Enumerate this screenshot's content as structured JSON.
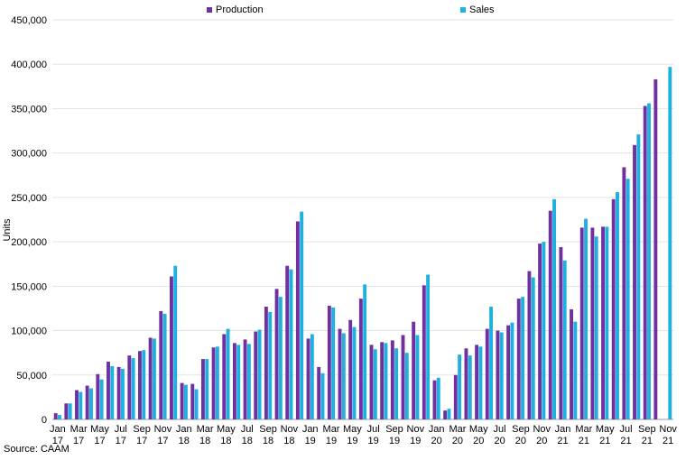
{
  "chart_data": {
    "type": "bar",
    "ylabel": "Units",
    "source": "Source: CAAM",
    "ylim": [
      0,
      450000
    ],
    "yticks": [
      "0",
      "50,000",
      "100,000",
      "150,000",
      "200,000",
      "250,000",
      "300,000",
      "350,000",
      "400,000",
      "450,000"
    ],
    "grid": true,
    "legend_position": "top",
    "colors": {
      "Production": "#7030a0",
      "Sales": "#1fb0e0"
    },
    "categories": [
      "Jan 17",
      "Feb 17",
      "Mar 17",
      "Apr 17",
      "May 17",
      "Jun 17",
      "Jul 17",
      "Aug 17",
      "Sep 17",
      "Oct 17",
      "Nov 17",
      "Dec 17",
      "Jan 18",
      "Feb 18",
      "Mar 18",
      "Apr 18",
      "May 18",
      "Jun 18",
      "Jul 18",
      "Aug 18",
      "Sep 18",
      "Oct 18",
      "Nov 18",
      "Dec 18",
      "Jan 19",
      "Feb 19",
      "Mar 19",
      "Apr 19",
      "May 19",
      "Jun 19",
      "Jul 19",
      "Aug 19",
      "Sep 19",
      "Oct 19",
      "Nov 19",
      "Dec 19",
      "Jan 20",
      "Feb 20",
      "Mar 20",
      "Apr 20",
      "May 20",
      "Jun 20",
      "Jul 20",
      "Aug 20",
      "Sep 20",
      "Oct 20",
      "Nov 20",
      "Dec 20",
      "Jan 21",
      "Feb 21",
      "Mar 21",
      "Apr 21",
      "May 21",
      "Jun 21",
      "Jul 21",
      "Aug 21",
      "Sep 21",
      "Oct 21",
      "Nov 21"
    ],
    "tick_labels": [
      {
        "month": "Jan",
        "year": "17"
      },
      {
        "month": "Mar",
        "year": "17"
      },
      {
        "month": "May",
        "year": "17"
      },
      {
        "month": "Jul",
        "year": "17"
      },
      {
        "month": "Sep",
        "year": "17"
      },
      {
        "month": "Nov",
        "year": "17"
      },
      {
        "month": "Jan",
        "year": "18"
      },
      {
        "month": "Mar",
        "year": "18"
      },
      {
        "month": "May",
        "year": "18"
      },
      {
        "month": "Jul",
        "year": "18"
      },
      {
        "month": "Sep",
        "year": "18"
      },
      {
        "month": "Nov",
        "year": "18"
      },
      {
        "month": "Jan",
        "year": "19"
      },
      {
        "month": "Mar",
        "year": "19"
      },
      {
        "month": "May",
        "year": "19"
      },
      {
        "month": "Jul",
        "year": "19"
      },
      {
        "month": "Sep",
        "year": "19"
      },
      {
        "month": "Nov",
        "year": "19"
      },
      {
        "month": "Jan",
        "year": "20"
      },
      {
        "month": "Mar",
        "year": "20"
      },
      {
        "month": "May",
        "year": "20"
      },
      {
        "month": "Jul",
        "year": "20"
      },
      {
        "month": "Sep",
        "year": "20"
      },
      {
        "month": "Nov",
        "year": "20"
      },
      {
        "month": "Jan",
        "year": "21"
      },
      {
        "month": "Mar",
        "year": "21"
      },
      {
        "month": "May",
        "year": "21"
      },
      {
        "month": "Jul",
        "year": "21"
      },
      {
        "month": "Sep",
        "year": "21"
      },
      {
        "month": "Nov",
        "year": "21"
      }
    ],
    "series": [
      {
        "name": "Production",
        "values": [
          7000,
          18000,
          33000,
          38000,
          51000,
          65000,
          59000,
          72000,
          77000,
          92000,
          122000,
          161000,
          41000,
          40000,
          68000,
          81000,
          96000,
          86000,
          90000,
          99000,
          127000,
          147000,
          173000,
          223000,
          91000,
          59000,
          128000,
          102000,
          112000,
          136000,
          84000,
          87000,
          89000,
          95000,
          110000,
          151000,
          44000,
          10000,
          50000,
          80000,
          84000,
          102000,
          100000,
          106000,
          136000,
          167000,
          198000,
          235000,
          194000,
          124000,
          216000,
          216000,
          217000,
          248000,
          284000,
          309000,
          353000,
          383000,
          null
        ]
      },
      {
        "name": "Sales",
        "values": [
          5000,
          18000,
          31000,
          35000,
          45000,
          60000,
          57000,
          69000,
          78000,
          91000,
          119000,
          173000,
          39000,
          34000,
          68000,
          82000,
          102000,
          84000,
          85000,
          101000,
          121000,
          138000,
          169000,
          234000,
          96000,
          52000,
          126000,
          97000,
          104000,
          152000,
          79000,
          86000,
          80000,
          75000,
          95000,
          163000,
          47000,
          12000,
          73000,
          72000,
          82000,
          127000,
          98000,
          109000,
          138000,
          160000,
          200000,
          248000,
          179000,
          110000,
          226000,
          206000,
          217000,
          256000,
          271000,
          321000,
          356000,
          null,
          397000
        ]
      }
    ]
  }
}
